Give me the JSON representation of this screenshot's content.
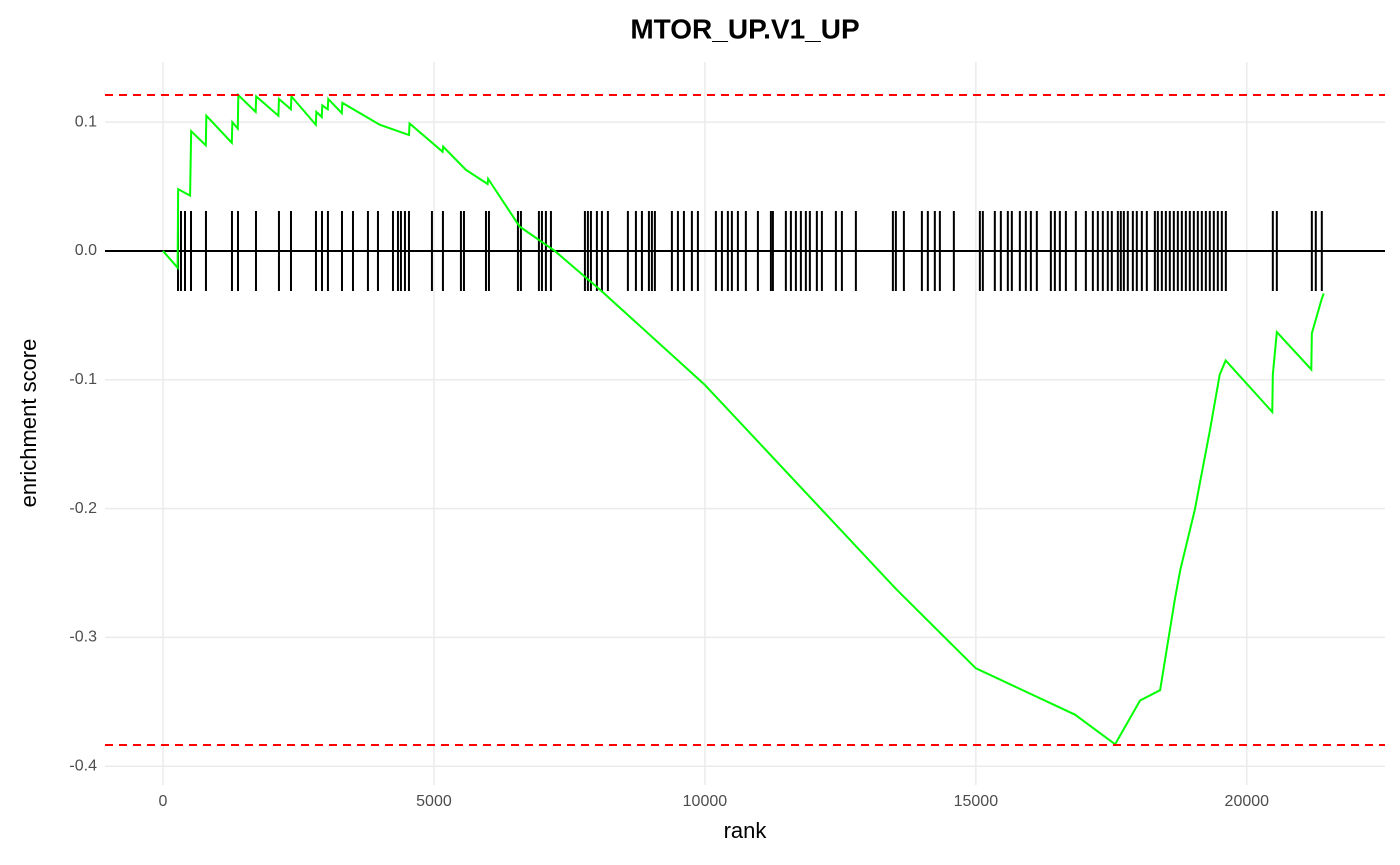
{
  "chart_data": {
    "type": "line",
    "title": "MTOR_UP.V1_UP",
    "x_label": "rank",
    "y_label": "enrichment score",
    "xlim": [
      -1070,
      22550
    ],
    "ylim": [
      -0.4146,
      0.1467
    ],
    "xticks": [
      0,
      5000,
      10000,
      15000,
      20000
    ],
    "yticks": [
      -0.4,
      -0.3,
      -0.2,
      -0.1,
      {
        "value": 0,
        "label": "0.0"
      },
      0.1
    ],
    "grid": true,
    "series": [
      {
        "color": "#00ff00",
        "x": [
          0,
          270,
          280,
          500,
          520,
          790,
          800,
          1270,
          1280,
          1380,
          1390,
          1710,
          1720,
          2130,
          2140,
          2360,
          2370,
          2820,
          2830,
          2930,
          2940,
          3040,
          3050,
          3300,
          3310,
          4000,
          4540,
          4550,
          5160,
          5170,
          5590,
          5990,
          6000,
          6580,
          7230,
          8063,
          10000,
          13540,
          15000,
          16830,
          17570,
          18030,
          18400,
          18670,
          18770,
          19040,
          19320,
          19500,
          19610,
          20470,
          20480,
          20554,
          21190,
          21200,
          21384,
          21420
        ],
        "values": [
          0,
          -0.013,
          0.048,
          0.043,
          0.093,
          0.082,
          0.105,
          0.084,
          0.1,
          0.095,
          0.121,
          0.108,
          0.12,
          0.105,
          0.118,
          0.11,
          0.12,
          0.098,
          0.108,
          0.104,
          0.113,
          0.11,
          0.118,
          0.107,
          0.115,
          0.098,
          0.09,
          0.099,
          0.077,
          0.081,
          0.063,
          0.052,
          0.056,
          0.019,
          0,
          -0.03,
          -0.104,
          -0.263,
          -0.324,
          -0.36,
          -0.383,
          -0.349,
          -0.341,
          -0.271,
          -0.248,
          -0.201,
          -0.139,
          -0.096,
          -0.085,
          -0.125,
          -0.096,
          -0.063,
          -0.092,
          -0.064,
          -0.037,
          -0.033
        ]
      }
    ],
    "gene_ranks": [
      277,
      332,
      406,
      517,
      793,
      1273,
      1384,
      1716,
      2140,
      2362,
      2823,
      2934,
      3044,
      3303,
      3506,
      3782,
      3967,
      4244,
      4336,
      4391,
      4465,
      4539,
      4963,
      5166,
      5498,
      5554,
      5960,
      6015,
      6550,
      6605,
      6937,
      6993,
      7066,
      7159,
      7786,
      7841,
      7897,
      8007,
      8100,
      8210,
      8579,
      8727,
      8838,
      8967,
      9022,
      9077,
      9391,
      9502,
      9613,
      9760,
      9871,
      10203,
      10314,
      10424,
      10498,
      10609,
      10756,
      10978,
      11218,
      11255,
      11494,
      11587,
      11679,
      11771,
      11863,
      11937,
      12066,
      12159,
      12417,
      12528,
      12786,
      13469,
      13524,
      13672,
      14004,
      14114,
      14243,
      14336,
      14594,
      15074,
      15129,
      15350,
      15461,
      15590,
      15664,
      15812,
      15922,
      16015,
      16125,
      16384,
      16458,
      16550,
      16661,
      16845,
      17030,
      17159,
      17251,
      17343,
      17435,
      17509,
      17620,
      17675,
      17731,
      17804,
      17897,
      17970,
      18063,
      18155,
      18303,
      18358,
      18432,
      18506,
      18579,
      18653,
      18727,
      18801,
      18875,
      18948,
      19022,
      19096,
      19170,
      19244,
      19317,
      19391,
      19465,
      19539,
      19613,
      20480,
      20554,
      21200,
      21273,
      21384
    ],
    "hlines": [
      {
        "value": 0.1211,
        "color": "#ff0000"
      },
      {
        "value": -0.3835,
        "color": "#ff0000"
      },
      {
        "value": 0,
        "color": "#000000"
      }
    ]
  }
}
